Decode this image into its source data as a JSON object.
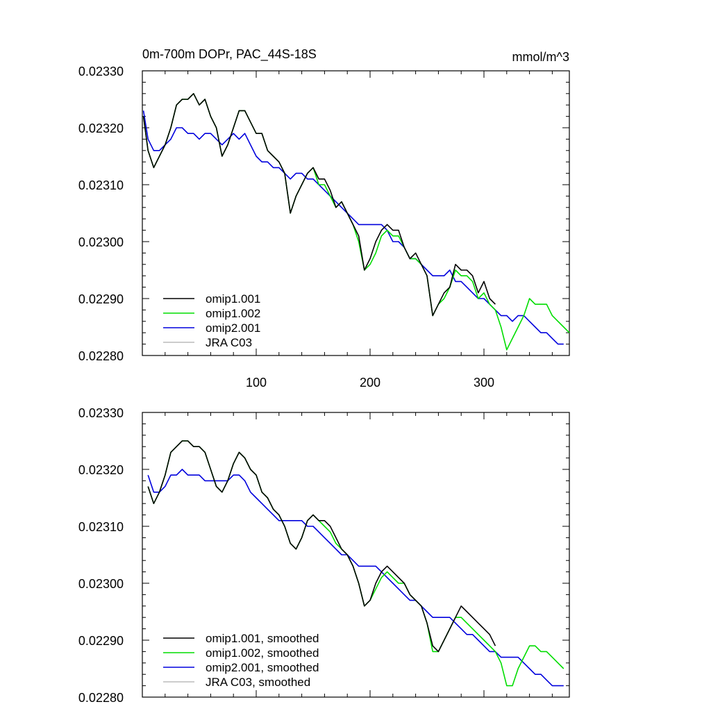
{
  "colors": {
    "omip1_001": "#000000",
    "omip1_002": "#00dd00",
    "omip2_001": "#0000dd",
    "jra_c03": "#bbbbbb"
  },
  "chart_data": [
    {
      "type": "line",
      "title": "0m-700m DOPr, PAC_44S-18S",
      "units": "mmol/m^3",
      "xlim": [
        0,
        375
      ],
      "ylim": [
        0.0228,
        0.0233
      ],
      "ytick_labels": [
        "0.02330",
        "0.02320",
        "0.02310",
        "0.02300",
        "0.02290",
        "0.02280"
      ],
      "xtick_labels": [
        "100",
        "200",
        "300"
      ],
      "legend_location": "bottom-left",
      "grid": false,
      "series": [
        {
          "name": "omip1.001",
          "color_key": "omip1_001",
          "x": [
            1,
            5,
            10,
            15,
            20,
            25,
            30,
            35,
            40,
            45,
            50,
            55,
            60,
            65,
            70,
            75,
            80,
            85,
            90,
            95,
            100,
            105,
            110,
            115,
            120,
            125,
            130,
            135,
            140,
            145,
            150,
            155,
            160,
            165,
            170,
            175,
            180,
            185,
            190,
            195,
            200,
            205,
            210,
            215,
            220,
            225,
            230,
            235,
            240,
            245,
            250,
            255,
            260,
            265,
            270,
            275,
            280,
            285,
            290,
            295,
            300,
            305,
            310
          ],
          "y": [
            0.02322,
            0.02316,
            0.02313,
            0.02315,
            0.02317,
            0.0232,
            0.02324,
            0.02325,
            0.02325,
            0.02326,
            0.02324,
            0.02325,
            0.02322,
            0.0232,
            0.02315,
            0.02317,
            0.0232,
            0.02323,
            0.02323,
            0.02321,
            0.02319,
            0.02319,
            0.02316,
            0.02315,
            0.02314,
            0.02312,
            0.02305,
            0.02308,
            0.0231,
            0.02312,
            0.02313,
            0.02311,
            0.02311,
            0.02309,
            0.02306,
            0.02307,
            0.02305,
            0.02303,
            0.02301,
            0.02295,
            0.02297,
            0.023,
            0.02302,
            0.02303,
            0.02302,
            0.02302,
            0.02299,
            0.02297,
            0.02298,
            0.02296,
            0.02294,
            0.02287,
            0.02289,
            0.02291,
            0.02292,
            0.02296,
            0.02295,
            0.02295,
            0.02294,
            0.02291,
            0.02293,
            0.0229,
            0.02289
          ]
        },
        {
          "name": "omip1.002",
          "color_key": "omip1_002",
          "x": [
            1,
            5,
            10,
            15,
            20,
            25,
            30,
            35,
            40,
            45,
            50,
            55,
            60,
            65,
            70,
            75,
            80,
            85,
            90,
            95,
            100,
            105,
            110,
            115,
            120,
            125,
            130,
            135,
            140,
            145,
            150,
            155,
            160,
            165,
            170,
            175,
            180,
            185,
            190,
            195,
            200,
            205,
            210,
            215,
            220,
            225,
            230,
            235,
            240,
            245,
            250,
            255,
            260,
            265,
            270,
            275,
            280,
            285,
            290,
            295,
            300,
            305,
            310,
            315,
            320,
            325,
            330,
            335,
            340,
            345,
            350,
            355,
            360,
            365,
            370,
            375
          ],
          "y": [
            0.02322,
            0.02316,
            0.02313,
            0.02315,
            0.02317,
            0.0232,
            0.02324,
            0.02325,
            0.02325,
            0.02326,
            0.02324,
            0.02325,
            0.02322,
            0.0232,
            0.02315,
            0.02317,
            0.0232,
            0.02323,
            0.02323,
            0.02321,
            0.02319,
            0.02319,
            0.02316,
            0.02315,
            0.02314,
            0.02312,
            0.02305,
            0.02308,
            0.0231,
            0.02312,
            0.02313,
            0.0231,
            0.0231,
            0.02308,
            0.02306,
            0.02307,
            0.02305,
            0.02303,
            0.023,
            0.02295,
            0.02296,
            0.02298,
            0.02301,
            0.02302,
            0.02301,
            0.02301,
            0.02299,
            0.02297,
            0.02297,
            0.02296,
            0.02294,
            0.02287,
            0.02289,
            0.0229,
            0.02292,
            0.02295,
            0.02294,
            0.02294,
            0.02293,
            0.0229,
            0.02291,
            0.02289,
            0.02288,
            0.02285,
            0.02281,
            0.02283,
            0.02285,
            0.02287,
            0.0229,
            0.02289,
            0.02289,
            0.02289,
            0.02287,
            0.02286,
            0.02285,
            0.02284
          ]
        },
        {
          "name": "omip2.001",
          "color_key": "omip2_001",
          "x": [
            1,
            5,
            10,
            15,
            20,
            25,
            30,
            35,
            40,
            45,
            50,
            55,
            60,
            65,
            70,
            75,
            80,
            85,
            90,
            95,
            100,
            105,
            110,
            115,
            120,
            125,
            130,
            135,
            140,
            145,
            150,
            155,
            160,
            165,
            170,
            175,
            180,
            185,
            190,
            195,
            200,
            205,
            210,
            215,
            220,
            225,
            230,
            235,
            240,
            245,
            250,
            255,
            260,
            265,
            270,
            275,
            280,
            285,
            290,
            295,
            300,
            305,
            310,
            315,
            320,
            325,
            330,
            335,
            340,
            345,
            350,
            355,
            360,
            365,
            370
          ],
          "y": [
            0.02323,
            0.02318,
            0.02316,
            0.02316,
            0.02317,
            0.02318,
            0.0232,
            0.0232,
            0.02319,
            0.02319,
            0.02318,
            0.02319,
            0.02319,
            0.02318,
            0.02317,
            0.02318,
            0.02319,
            0.02318,
            0.02319,
            0.02317,
            0.02315,
            0.02314,
            0.02314,
            0.02313,
            0.02313,
            0.02312,
            0.02311,
            0.02312,
            0.02312,
            0.02311,
            0.02311,
            0.0231,
            0.02309,
            0.02308,
            0.02307,
            0.02306,
            0.02305,
            0.02304,
            0.02303,
            0.02303,
            0.02303,
            0.02303,
            0.02303,
            0.02302,
            0.023,
            0.023,
            0.02299,
            0.02297,
            0.02297,
            0.02296,
            0.02295,
            0.02294,
            0.02294,
            0.02294,
            0.02295,
            0.02293,
            0.02293,
            0.02292,
            0.02291,
            0.0229,
            0.0229,
            0.02289,
            0.02288,
            0.02287,
            0.02287,
            0.02286,
            0.02287,
            0.02287,
            0.02286,
            0.02285,
            0.02284,
            0.02284,
            0.02283,
            0.02282,
            0.02282
          ]
        },
        {
          "name": "JRA C03",
          "color_key": "jra_c03",
          "x": [],
          "y": []
        }
      ]
    },
    {
      "type": "line",
      "title": "",
      "units": "",
      "xlim": [
        0,
        375
      ],
      "ylim": [
        0.0228,
        0.0233
      ],
      "ytick_labels": [
        "0.02330",
        "0.02320",
        "0.02310",
        "0.02300",
        "0.02290",
        "0.02280"
      ],
      "xtick_labels": [],
      "legend_location": "bottom-left",
      "grid": false,
      "series": [
        {
          "name": "omip1.001, smoothed",
          "color_key": "omip1_001",
          "x": [
            5,
            10,
            15,
            20,
            25,
            30,
            35,
            40,
            45,
            50,
            55,
            60,
            65,
            70,
            75,
            80,
            85,
            90,
            95,
            100,
            105,
            110,
            115,
            120,
            125,
            130,
            135,
            140,
            145,
            150,
            155,
            160,
            165,
            170,
            175,
            180,
            185,
            190,
            195,
            200,
            205,
            210,
            215,
            220,
            225,
            230,
            235,
            240,
            245,
            250,
            255,
            260,
            265,
            270,
            275,
            280,
            285,
            290,
            295,
            300,
            305,
            310
          ],
          "y": [
            0.02317,
            0.02314,
            0.02316,
            0.02319,
            0.02323,
            0.02324,
            0.02325,
            0.02325,
            0.02324,
            0.02324,
            0.02323,
            0.0232,
            0.02317,
            0.02316,
            0.02318,
            0.02321,
            0.02323,
            0.02322,
            0.0232,
            0.02319,
            0.02316,
            0.02315,
            0.02313,
            0.02312,
            0.0231,
            0.02307,
            0.02306,
            0.02308,
            0.02311,
            0.02312,
            0.02311,
            0.02311,
            0.0231,
            0.02308,
            0.02306,
            0.02305,
            0.02303,
            0.023,
            0.02296,
            0.02297,
            0.023,
            0.02302,
            0.02303,
            0.02302,
            0.02301,
            0.023,
            0.02298,
            0.02297,
            0.02296,
            0.02293,
            0.02289,
            0.02288,
            0.0229,
            0.02292,
            0.02294,
            0.02296,
            0.02295,
            0.02294,
            0.02293,
            0.02292,
            0.02291,
            0.02289
          ]
        },
        {
          "name": "omip1.002, smoothed",
          "color_key": "omip1_002",
          "x": [
            5,
            10,
            15,
            20,
            25,
            30,
            35,
            40,
            45,
            50,
            55,
            60,
            65,
            70,
            75,
            80,
            85,
            90,
            95,
            100,
            105,
            110,
            115,
            120,
            125,
            130,
            135,
            140,
            145,
            150,
            155,
            160,
            165,
            170,
            175,
            180,
            185,
            190,
            195,
            200,
            205,
            210,
            215,
            220,
            225,
            230,
            235,
            240,
            245,
            250,
            255,
            260,
            265,
            270,
            275,
            280,
            285,
            290,
            295,
            300,
            305,
            310,
            315,
            320,
            325,
            330,
            335,
            340,
            345,
            350,
            355,
            360,
            365,
            370
          ],
          "y": [
            0.02317,
            0.02314,
            0.02316,
            0.02319,
            0.02323,
            0.02324,
            0.02325,
            0.02325,
            0.02324,
            0.02324,
            0.02323,
            0.0232,
            0.02317,
            0.02316,
            0.02318,
            0.02321,
            0.02323,
            0.02322,
            0.0232,
            0.02319,
            0.02316,
            0.02315,
            0.02313,
            0.02312,
            0.0231,
            0.02307,
            0.02306,
            0.02308,
            0.02311,
            0.02312,
            0.02311,
            0.0231,
            0.02309,
            0.02307,
            0.02306,
            0.02305,
            0.02303,
            0.023,
            0.02296,
            0.02297,
            0.02299,
            0.02301,
            0.02302,
            0.02301,
            0.023,
            0.023,
            0.02298,
            0.02297,
            0.02296,
            0.02293,
            0.02288,
            0.02288,
            0.0229,
            0.02292,
            0.02294,
            0.02294,
            0.02293,
            0.02292,
            0.02291,
            0.0229,
            0.02289,
            0.02288,
            0.02286,
            0.02282,
            0.02282,
            0.02285,
            0.02287,
            0.02289,
            0.02289,
            0.02288,
            0.02288,
            0.02287,
            0.02286,
            0.02285
          ]
        },
        {
          "name": "omip2.001, smoothed",
          "color_key": "omip2_001",
          "x": [
            5,
            10,
            15,
            20,
            25,
            30,
            35,
            40,
            45,
            50,
            55,
            60,
            65,
            70,
            75,
            80,
            85,
            90,
            95,
            100,
            105,
            110,
            115,
            120,
            125,
            130,
            135,
            140,
            145,
            150,
            155,
            160,
            165,
            170,
            175,
            180,
            185,
            190,
            195,
            200,
            205,
            210,
            215,
            220,
            225,
            230,
            235,
            240,
            245,
            250,
            255,
            260,
            265,
            270,
            275,
            280,
            285,
            290,
            295,
            300,
            305,
            310,
            315,
            320,
            325,
            330,
            335,
            340,
            345,
            350,
            355,
            360,
            365,
            370
          ],
          "y": [
            0.02319,
            0.02316,
            0.02316,
            0.02317,
            0.02319,
            0.02319,
            0.0232,
            0.02319,
            0.02319,
            0.02319,
            0.02318,
            0.02318,
            0.02318,
            0.02318,
            0.02318,
            0.02319,
            0.02319,
            0.02318,
            0.02316,
            0.02315,
            0.02314,
            0.02313,
            0.02312,
            0.02311,
            0.02311,
            0.02311,
            0.02311,
            0.02311,
            0.0231,
            0.0231,
            0.02309,
            0.02308,
            0.02307,
            0.02306,
            0.02305,
            0.02305,
            0.02304,
            0.02303,
            0.02303,
            0.02303,
            0.02303,
            0.02302,
            0.02301,
            0.023,
            0.02299,
            0.02298,
            0.02297,
            0.02297,
            0.02296,
            0.02295,
            0.02294,
            0.02294,
            0.02294,
            0.02294,
            0.02293,
            0.02292,
            0.02291,
            0.02291,
            0.0229,
            0.02289,
            0.02288,
            0.02288,
            0.02287,
            0.02287,
            0.02287,
            0.02287,
            0.02286,
            0.02285,
            0.02284,
            0.02284,
            0.02283,
            0.02282,
            0.02282,
            0.02282
          ]
        },
        {
          "name": "JRA C03, smoothed",
          "color_key": "jra_c03",
          "x": [],
          "y": []
        }
      ]
    }
  ]
}
